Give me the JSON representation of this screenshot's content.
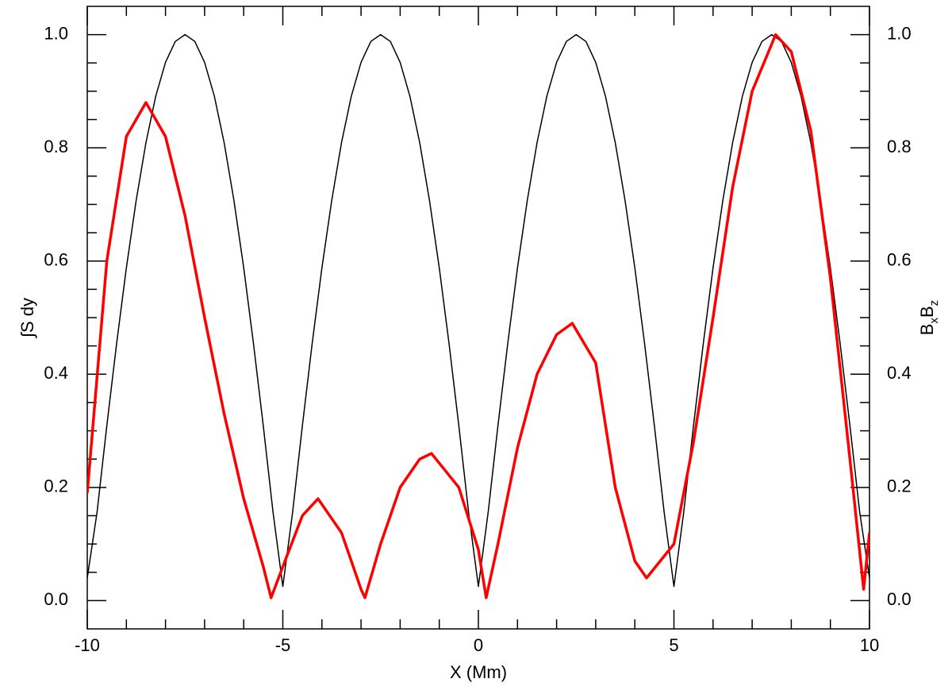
{
  "chart_data": {
    "type": "line",
    "xlabel": "X (Mm)",
    "ylabel": "∫S dy",
    "y2label": [
      {
        "text": "B"
      },
      {
        "text": "x",
        "sub": true
      },
      {
        "text": "B"
      },
      {
        "text": "z",
        "sub": true
      }
    ],
    "xlim": [
      -10,
      10
    ],
    "xticks": [
      -10,
      -5,
      0,
      5,
      10
    ],
    "xminorticks": [
      -9,
      -8,
      -7,
      -6,
      -4,
      -3,
      -2,
      -1,
      1,
      2,
      3,
      4,
      6,
      7,
      8,
      9
    ],
    "ylim": [
      -0.05,
      1.05
    ],
    "yticks": [
      {
        "value": 0,
        "label": "0.0"
      },
      0.2,
      0.4,
      0.6,
      0.8,
      {
        "value": 1,
        "label": "1.0"
      }
    ],
    "y2lim": [
      -0.05,
      1.05
    ],
    "y2ticks": [
      {
        "value": 0,
        "label": "0.0"
      },
      0.2,
      0.4,
      0.6,
      0.8,
      {
        "value": 1,
        "label": "1.0"
      }
    ],
    "yminorticks": [
      0.05,
      0.1,
      0.15,
      0.25,
      0.3,
      0.35,
      0.45,
      0.5,
      0.55,
      0.65,
      0.7,
      0.75,
      0.85,
      0.9,
      0.95
    ],
    "series": [
      {
        "name": "BxBz",
        "color": "#000000",
        "axis": "y2",
        "width": 1.5,
        "x": [
          -10,
          -9.75,
          -9.5,
          -9.25,
          -9,
          -8.75,
          -8.5,
          -8.25,
          -8,
          -7.75,
          -7.5,
          -7.25,
          -7,
          -6.75,
          -6.5,
          -6.25,
          -6,
          -5.75,
          -5.5,
          -5.25,
          -5,
          -4.75,
          -4.5,
          -4.25,
          -4,
          -3.75,
          -3.5,
          -3.25,
          -3,
          -2.75,
          -2.5,
          -2.25,
          -2,
          -1.75,
          -1.5,
          -1.25,
          -1,
          -0.75,
          -0.5,
          -0.25,
          0,
          0.25,
          0.5,
          0.75,
          1,
          1.25,
          1.5,
          1.75,
          2,
          2.25,
          2.5,
          2.75,
          3,
          3.25,
          3.5,
          3.75,
          4,
          4.25,
          4.5,
          4.75,
          5,
          5.25,
          5.5,
          5.75,
          6,
          6.25,
          6.5,
          6.75,
          7,
          7.25,
          7.5,
          7.75,
          8,
          8.25,
          8.5,
          8.75,
          9,
          9.25,
          9.5,
          9.75,
          10
        ],
        "values": [
          0.04,
          0.156,
          0.309,
          0.454,
          0.588,
          0.707,
          0.809,
          0.891,
          0.951,
          0.988,
          1,
          0.988,
          0.951,
          0.891,
          0.809,
          0.707,
          0.588,
          0.454,
          0.309,
          0.156,
          0.025,
          0.156,
          0.309,
          0.454,
          0.588,
          0.707,
          0.809,
          0.891,
          0.951,
          0.988,
          1,
          0.988,
          0.951,
          0.891,
          0.809,
          0.707,
          0.588,
          0.454,
          0.309,
          0.156,
          0.025,
          0.156,
          0.309,
          0.454,
          0.588,
          0.707,
          0.809,
          0.891,
          0.951,
          0.988,
          1,
          0.988,
          0.951,
          0.891,
          0.809,
          0.707,
          0.588,
          0.454,
          0.309,
          0.156,
          0.025,
          0.156,
          0.309,
          0.454,
          0.588,
          0.707,
          0.809,
          0.891,
          0.951,
          0.988,
          1,
          0.988,
          0.951,
          0.891,
          0.809,
          0.707,
          0.588,
          0.454,
          0.309,
          0.156,
          0.04
        ]
      },
      {
        "name": "∫S dy",
        "color": "#ff0000",
        "axis": "y",
        "width": 3.5,
        "x": [
          -10,
          -9.5,
          -9,
          -8.5,
          -8,
          -7.5,
          -7,
          -6.5,
          -6,
          -5.5,
          -5.3,
          -5,
          -4.5,
          -4.1,
          -3.5,
          -3,
          -2.9,
          -2.5,
          -2,
          -1.5,
          -1.2,
          -0.5,
          0,
          0.2,
          0.5,
          1,
          1.5,
          2,
          2.4,
          3,
          3.5,
          4,
          4.3,
          5,
          5.5,
          6,
          6.5,
          7,
          7.6,
          8,
          8.5,
          9,
          9.5,
          9.85,
          10
        ],
        "values": [
          0.19,
          0.6,
          0.82,
          0.88,
          0.82,
          0.68,
          0.5,
          0.33,
          0.18,
          0.06,
          0.005,
          0.06,
          0.15,
          0.18,
          0.12,
          0.02,
          0.005,
          0.1,
          0.2,
          0.25,
          0.26,
          0.2,
          0.09,
          0.005,
          0.1,
          0.27,
          0.4,
          0.47,
          0.49,
          0.42,
          0.2,
          0.07,
          0.04,
          0.1,
          0.28,
          0.5,
          0.73,
          0.9,
          1.0,
          0.97,
          0.83,
          0.57,
          0.25,
          0.02,
          0.12
        ]
      }
    ]
  }
}
